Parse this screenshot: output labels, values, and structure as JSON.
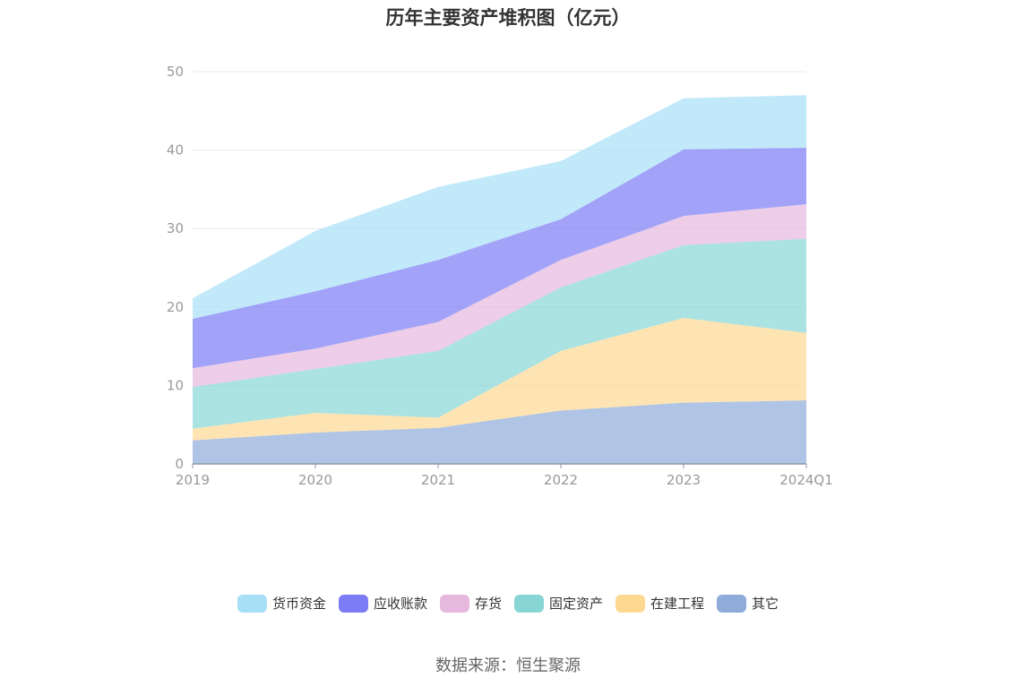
{
  "chart_data": {
    "type": "area",
    "stacked": true,
    "title": "历年主要资产堆积图（亿元）",
    "categories": [
      "2019",
      "2020",
      "2021",
      "2022",
      "2023",
      "2024Q1"
    ],
    "ylim": [
      0,
      50
    ],
    "y_ticks": [
      0,
      10,
      20,
      30,
      40,
      50
    ],
    "grid": true,
    "legend_position": "bottom",
    "series": [
      {
        "name": "其它",
        "color": "#8FABDA",
        "values": [
          3.0,
          4.0,
          4.6,
          6.8,
          7.8,
          8.1
        ]
      },
      {
        "name": "在建工程",
        "color": "#FDD891",
        "values": [
          1.5,
          2.5,
          1.3,
          7.6,
          10.8,
          8.6
        ]
      },
      {
        "name": "固定资产",
        "color": "#88D5D6",
        "values": [
          5.3,
          5.6,
          8.5,
          8.1,
          9.3,
          12.0
        ]
      },
      {
        "name": "存货",
        "color": "#E6B8DE",
        "values": [
          2.4,
          2.6,
          3.7,
          3.5,
          3.7,
          4.4
        ]
      },
      {
        "name": "应收账款",
        "color": "#7B7CF5",
        "values": [
          6.3,
          7.3,
          7.9,
          5.2,
          8.5,
          7.2
        ]
      },
      {
        "name": "货币资金",
        "color": "#A7DFF6",
        "values": [
          2.6,
          7.7,
          9.3,
          7.4,
          6.5,
          6.7
        ]
      }
    ]
  },
  "legend": {
    "items": [
      {
        "label": "货币资金",
        "color": "#A7DFF6"
      },
      {
        "label": "应收账款",
        "color": "#7B7CF5"
      },
      {
        "label": "存货",
        "color": "#E6B8DE"
      },
      {
        "label": "固定资产",
        "color": "#88D5D6"
      },
      {
        "label": "在建工程",
        "color": "#FDD891"
      },
      {
        "label": "其它",
        "color": "#8FABDA"
      }
    ]
  },
  "source_text": "数据来源：恒生聚源"
}
